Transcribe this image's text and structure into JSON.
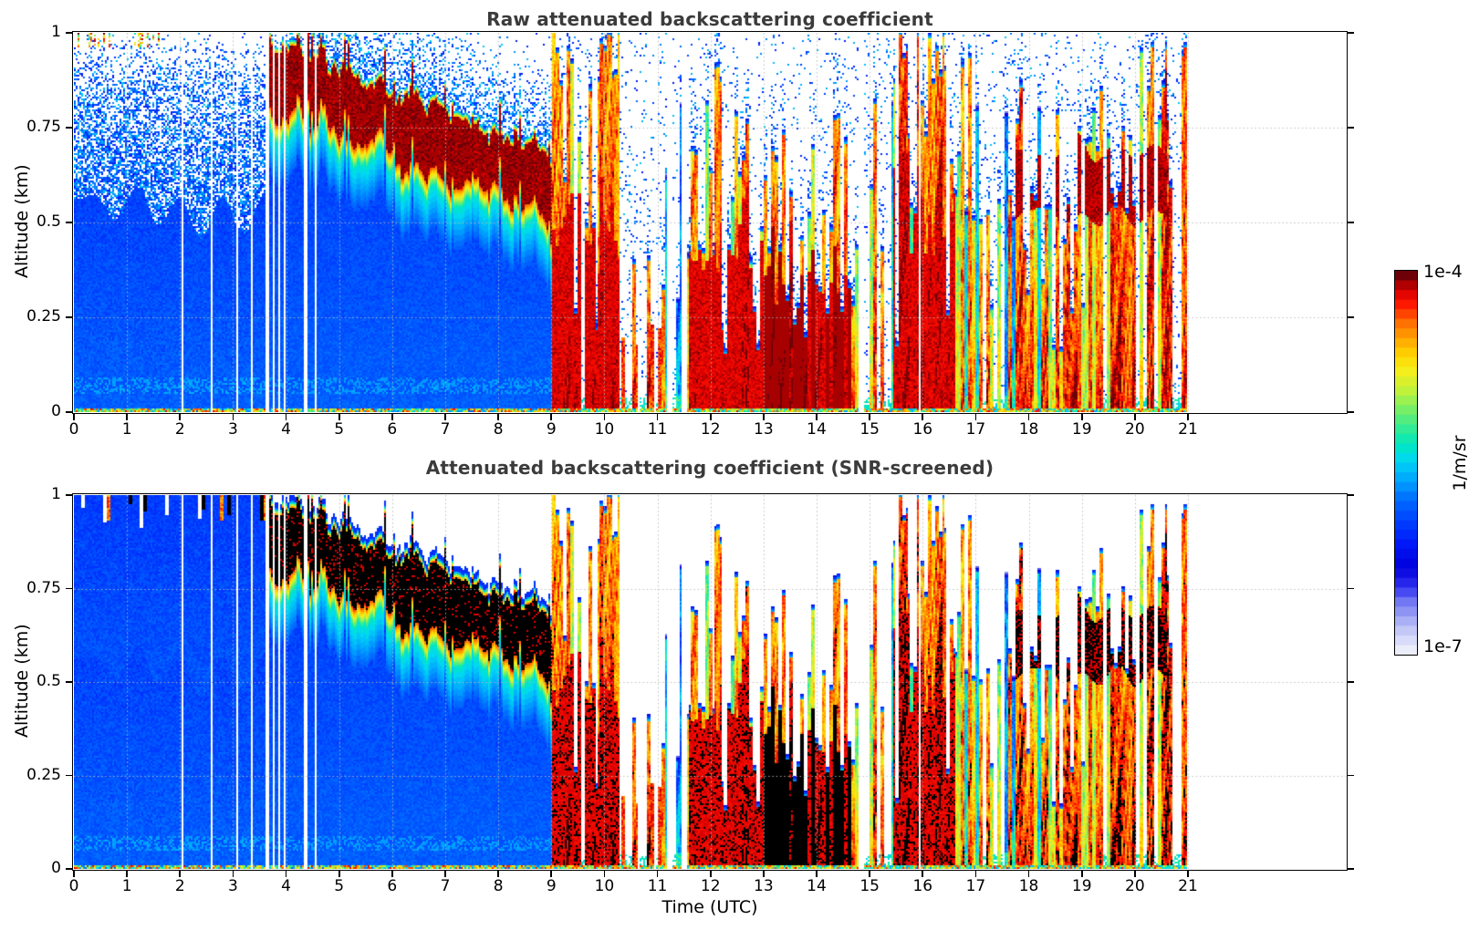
{
  "figure": {
    "background": "#ffffff",
    "title_color": "#3b3b3b",
    "panel1_title": "Raw attenuated backscattering coefficient",
    "panel2_title": "Attenuated backscattering coefficient (SNR-screened)",
    "xlabel": "Time (UTC)",
    "ylabel": "Altitude (km)",
    "colorbar_top_label": "1e-4",
    "colorbar_bottom_label": "1e-7",
    "colorbar_unit": "1/m/sr"
  },
  "chart_data": {
    "type": "heatmap",
    "panels": [
      {
        "title": "Raw attenuated backscattering coefficient",
        "description": "ceilometer attenuated backscatter, raw: blue speckle noise above signal, dark-red saturated cloud/aerosol layer"
      },
      {
        "title": "Attenuated backscattering coefficient (SNR-screened)",
        "description": "same field, SNR-screened: noise removed (white), saturated values rendered black with blue fringe"
      }
    ],
    "x": {
      "label": "Time (UTC)",
      "min": 0,
      "max": 21,
      "ticks": [
        0,
        1,
        2,
        3,
        4,
        5,
        6,
        7,
        8,
        9,
        10,
        11,
        12,
        13,
        14,
        15,
        16,
        17,
        18,
        19,
        20,
        21
      ],
      "data_end": 21,
      "axis_extends_to": 23.97
    },
    "y": {
      "label": "Altitude (km)",
      "min": 0,
      "max": 1,
      "ticks": [
        1,
        0.75,
        0.5,
        0.25,
        0
      ],
      "tick_labels": [
        "1",
        "0.75",
        "0.5",
        "0.25",
        "0"
      ]
    },
    "colorbar": {
      "scale": "log",
      "min": "1e-7",
      "max": "1e-4",
      "unit": "1/m/sr",
      "steps": 40,
      "colormap_stops": [
        [
          0.0,
          "#ffffff"
        ],
        [
          0.03,
          "#e8e9fa"
        ],
        [
          0.07,
          "#c9cdf7"
        ],
        [
          0.11,
          "#9fa6f4"
        ],
        [
          0.15,
          "#7277f2"
        ],
        [
          0.19,
          "#2e2ef0"
        ],
        [
          0.24,
          "#0000dc"
        ],
        [
          0.3,
          "#0018f8"
        ],
        [
          0.36,
          "#0040ff"
        ],
        [
          0.42,
          "#0070ff"
        ],
        [
          0.47,
          "#00a8ff"
        ],
        [
          0.52,
          "#00d8f0"
        ],
        [
          0.56,
          "#00e8c0"
        ],
        [
          0.61,
          "#3dec8c"
        ],
        [
          0.66,
          "#84f05c"
        ],
        [
          0.7,
          "#c0f23c"
        ],
        [
          0.75,
          "#f4ee1c"
        ],
        [
          0.79,
          "#ffd800"
        ],
        [
          0.83,
          "#ffaa00"
        ],
        [
          0.87,
          "#ff7a00"
        ],
        [
          0.9,
          "#ff4400"
        ],
        [
          0.93,
          "#fb1000"
        ],
        [
          0.96,
          "#d80000"
        ],
        [
          0.98,
          "#a40000"
        ],
        [
          1.0,
          "#6e0008"
        ]
      ],
      "screened_black_above": 0.962
    },
    "structure": {
      "seed": 7,
      "grid": {
        "h_lines": [
          0.25,
          0.5,
          0.75
        ],
        "v_lines_every_hour": true,
        "style": "dotted"
      },
      "regimes": [
        {
          "t0": 0.0,
          "t1": 3.6,
          "mode": "clear",
          "noise_top": 0.52
        },
        {
          "t0": 3.6,
          "t1": 4.75,
          "mode": "layer",
          "top0": 1.0,
          "top1": 0.93,
          "thick": 0.17
        },
        {
          "t0": 4.75,
          "t1": 9.0,
          "mode": "layer",
          "top0": 0.93,
          "top1": 0.67,
          "thick": 0.16
        },
        {
          "t0": 9.0,
          "t1": 10.3,
          "mode": "rain",
          "density": 0.93,
          "top_max": 1.0,
          "hot": 0.8,
          "core_top": 0.5
        },
        {
          "t0": 10.3,
          "t1": 11.6,
          "mode": "rain",
          "density": 0.4,
          "top_max": 0.85,
          "hot": 0.55,
          "stub": 0.55
        },
        {
          "t0": 11.6,
          "t1": 13.0,
          "mode": "rain",
          "density": 0.94,
          "top_max": 0.9,
          "hot": 0.8,
          "core_top": 0.48
        },
        {
          "t0": 13.0,
          "t1": 14.65,
          "mode": "rain",
          "density": 0.97,
          "top_max": 0.8,
          "hot": 0.88,
          "core_top": 0.4,
          "dark": 1
        },
        {
          "t0": 14.65,
          "t1": 15.45,
          "mode": "rain",
          "density": 0.75,
          "top_max": 0.95,
          "hot": 0.7
        },
        {
          "t0": 15.45,
          "t1": 16.6,
          "mode": "rain",
          "density": 0.93,
          "top_max": 1.02,
          "hot": 0.85,
          "core_top": 0.55
        },
        {
          "t0": 16.6,
          "t1": 17.75,
          "mode": "rain",
          "density": 0.88,
          "top_max": 1.0,
          "hot": 0.3
        },
        {
          "t0": 17.75,
          "t1": 20.6,
          "mode": "rain",
          "density": 0.92,
          "top_max": 0.97,
          "hot": 0.75,
          "band": [
            0.52,
            0.7
          ]
        },
        {
          "t0": 20.6,
          "t1": 21.0,
          "mode": "rain",
          "density": 0.9,
          "top_max": 0.78,
          "hot": 0.85
        }
      ],
      "gaps": [
        [
          2.03,
          2.06
        ],
        [
          2.57,
          2.6
        ],
        [
          3.07,
          3.1
        ],
        [
          3.33,
          3.36
        ],
        [
          3.62,
          3.68
        ],
        [
          3.74,
          3.79
        ],
        [
          3.85,
          3.9
        ],
        [
          3.95,
          3.99
        ],
        [
          4.34,
          4.42
        ],
        [
          4.53,
          4.57
        ],
        [
          10.62,
          10.68
        ],
        [
          10.93,
          10.99
        ],
        [
          11.18,
          11.28
        ],
        [
          11.47,
          11.56
        ],
        [
          14.78,
          14.88
        ],
        [
          15.92,
          15.97
        ]
      ],
      "plumes": [
        [
          7.55,
          7.63
        ],
        [
          9.02,
          9.22
        ],
        [
          9.86,
          10.14
        ],
        [
          12.08,
          12.2
        ],
        [
          15.55,
          15.72
        ],
        [
          16.15,
          16.4
        ],
        [
          20.88,
          21.0
        ]
      ]
    }
  }
}
